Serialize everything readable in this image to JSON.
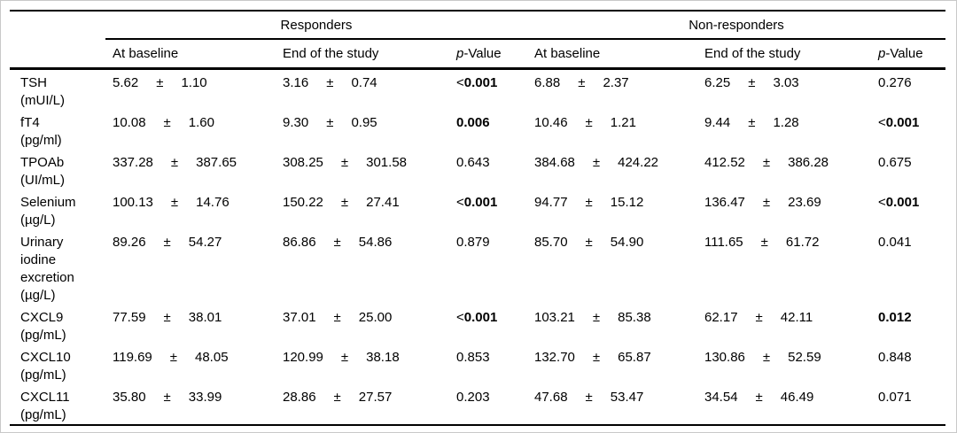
{
  "table": {
    "plus_minus": "±",
    "groups": [
      {
        "label": "Responders"
      },
      {
        "label": "Non-responders"
      }
    ],
    "columns": {
      "baseline": "At baseline",
      "end": "End of the study",
      "p_italic": "p",
      "p_rest": "-Value"
    },
    "colors": {
      "rule_black": "#000000",
      "frame_gray": "#c9c9c9",
      "text": "#000000"
    },
    "rows": [
      {
        "label": "TSH\n(mUI/L)",
        "responders_baseline": {
          "mean": "5.62",
          "sd": "1.10"
        },
        "responders_end": {
          "mean": "3.16",
          "sd": "0.74"
        },
        "responders_p": {
          "prefix": "<",
          "value": "0.001",
          "bold": true
        },
        "nonresponders_baseline": {
          "mean": "6.88",
          "sd": "2.37"
        },
        "nonresponders_end": {
          "mean": "6.25",
          "sd": "3.03"
        },
        "nonresponders_p": {
          "prefix": "",
          "value": "0.276",
          "bold": false
        }
      },
      {
        "label": "fT4\n(pg/ml)",
        "responders_baseline": {
          "mean": "10.08",
          "sd": "1.60"
        },
        "responders_end": {
          "mean": "9.30",
          "sd": "0.95"
        },
        "responders_p": {
          "prefix": "",
          "value": "0.006",
          "bold": true
        },
        "nonresponders_baseline": {
          "mean": "10.46",
          "sd": "1.21"
        },
        "nonresponders_end": {
          "mean": "9.44",
          "sd": "1.28"
        },
        "nonresponders_p": {
          "prefix": "<",
          "value": "0.001",
          "bold": true
        }
      },
      {
        "label": "TPOAb\n(UI/mL)",
        "responders_baseline": {
          "mean": "337.28",
          "sd": "387.65"
        },
        "responders_end": {
          "mean": "308.25",
          "sd": "301.58"
        },
        "responders_p": {
          "prefix": "",
          "value": "0.643",
          "bold": false
        },
        "nonresponders_baseline": {
          "mean": "384.68",
          "sd": "424.22"
        },
        "nonresponders_end": {
          "mean": "412.52",
          "sd": "386.28"
        },
        "nonresponders_p": {
          "prefix": "",
          "value": "0.675",
          "bold": false
        }
      },
      {
        "label": "Selenium\n(µg/L)",
        "responders_baseline": {
          "mean": "100.13",
          "sd": "14.76"
        },
        "responders_end": {
          "mean": "150.22",
          "sd": "27.41"
        },
        "responders_p": {
          "prefix": "<",
          "value": "0.001",
          "bold": true
        },
        "nonresponders_baseline": {
          "mean": "94.77",
          "sd": "15.12"
        },
        "nonresponders_end": {
          "mean": "136.47",
          "sd": "23.69"
        },
        "nonresponders_p": {
          "prefix": "<",
          "value": "0.001",
          "bold": true
        }
      },
      {
        "label": "Urinary\niodine\nexcretion\n(µg/L)",
        "responders_baseline": {
          "mean": "89.26",
          "sd": "54.27"
        },
        "responders_end": {
          "mean": "86.86",
          "sd": "54.86"
        },
        "responders_p": {
          "prefix": "",
          "value": "0.879",
          "bold": false
        },
        "nonresponders_baseline": {
          "mean": "85.70",
          "sd": "54.90"
        },
        "nonresponders_end": {
          "mean": "111.65",
          "sd": "61.72"
        },
        "nonresponders_p": {
          "prefix": "",
          "value": "0.041",
          "bold": false
        }
      },
      {
        "label": "CXCL9\n(pg/mL)",
        "responders_baseline": {
          "mean": "77.59",
          "sd": "38.01"
        },
        "responders_end": {
          "mean": "37.01",
          "sd": "25.00"
        },
        "responders_p": {
          "prefix": "<",
          "value": "0.001",
          "bold": true
        },
        "nonresponders_baseline": {
          "mean": "103.21",
          "sd": "85.38"
        },
        "nonresponders_end": {
          "mean": "62.17",
          "sd": "42.11"
        },
        "nonresponders_p": {
          "prefix": "",
          "value": "0.012",
          "bold": true
        }
      },
      {
        "label": "CXCL10\n(pg/mL)",
        "responders_baseline": {
          "mean": "119.69",
          "sd": "48.05"
        },
        "responders_end": {
          "mean": "120.99",
          "sd": "38.18"
        },
        "responders_p": {
          "prefix": "",
          "value": "0.853",
          "bold": false
        },
        "nonresponders_baseline": {
          "mean": "132.70",
          "sd": "65.87"
        },
        "nonresponders_end": {
          "mean": "130.86",
          "sd": "52.59"
        },
        "nonresponders_p": {
          "prefix": "",
          "value": "0.848",
          "bold": false
        }
      },
      {
        "label": "CXCL11\n(pg/mL)",
        "responders_baseline": {
          "mean": "35.80",
          "sd": "33.99"
        },
        "responders_end": {
          "mean": "28.86",
          "sd": "27.57"
        },
        "responders_p": {
          "prefix": "",
          "value": "0.203",
          "bold": false
        },
        "nonresponders_baseline": {
          "mean": "47.68",
          "sd": "53.47"
        },
        "nonresponders_end": {
          "mean": "34.54",
          "sd": "46.49"
        },
        "nonresponders_p": {
          "prefix": "",
          "value": "0.071",
          "bold": false
        }
      }
    ]
  }
}
